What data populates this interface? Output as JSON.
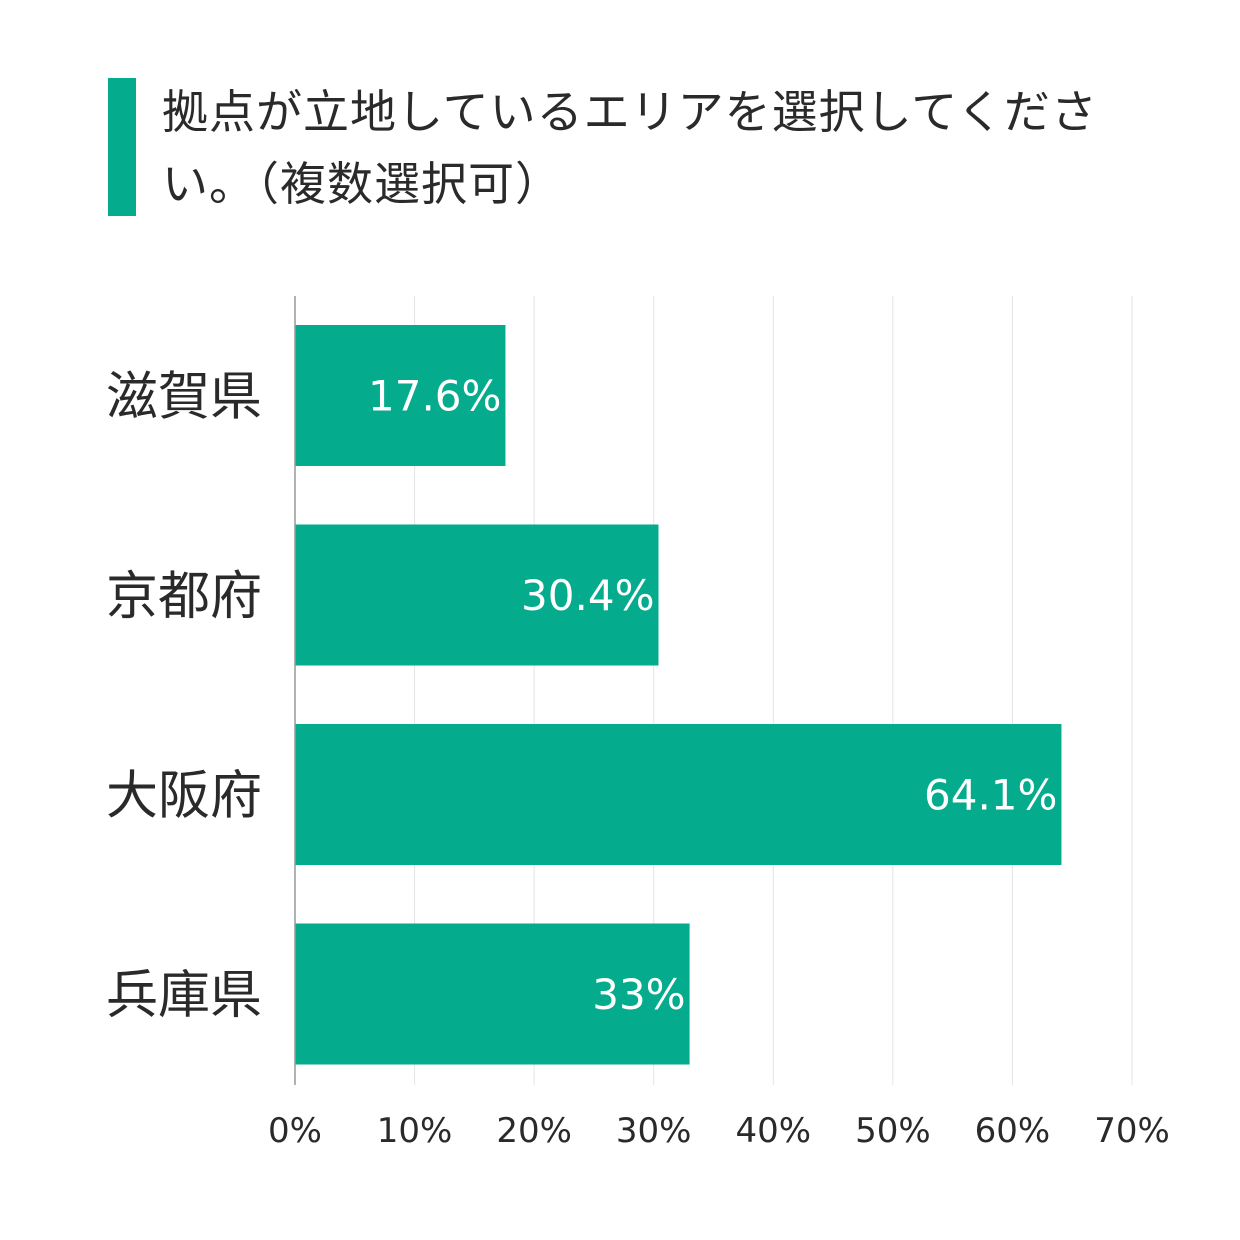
{
  "colors": {
    "accent": "#05ab8d",
    "grid": "#e4e4e4",
    "axis": "#999999",
    "bar_label": "#ffffff",
    "text": "#2a2a2a"
  },
  "header": {
    "title": "拠点が立地しているエリアを選択してください。（複数選択可）"
  },
  "chart_data": {
    "type": "bar",
    "orientation": "horizontal",
    "categories": [
      "滋賀県",
      "京都府",
      "大阪府",
      "兵庫県"
    ],
    "values": [
      17.6,
      30.4,
      64.1,
      33
    ],
    "value_labels": [
      "17.6%",
      "30.4%",
      "64.1%",
      "33%"
    ],
    "xlim": [
      0,
      70
    ],
    "xticks": [
      "0%",
      "10%",
      "20%",
      "30%",
      "40%",
      "50%",
      "60%",
      "70%"
    ],
    "grid": true,
    "legend": "none"
  }
}
